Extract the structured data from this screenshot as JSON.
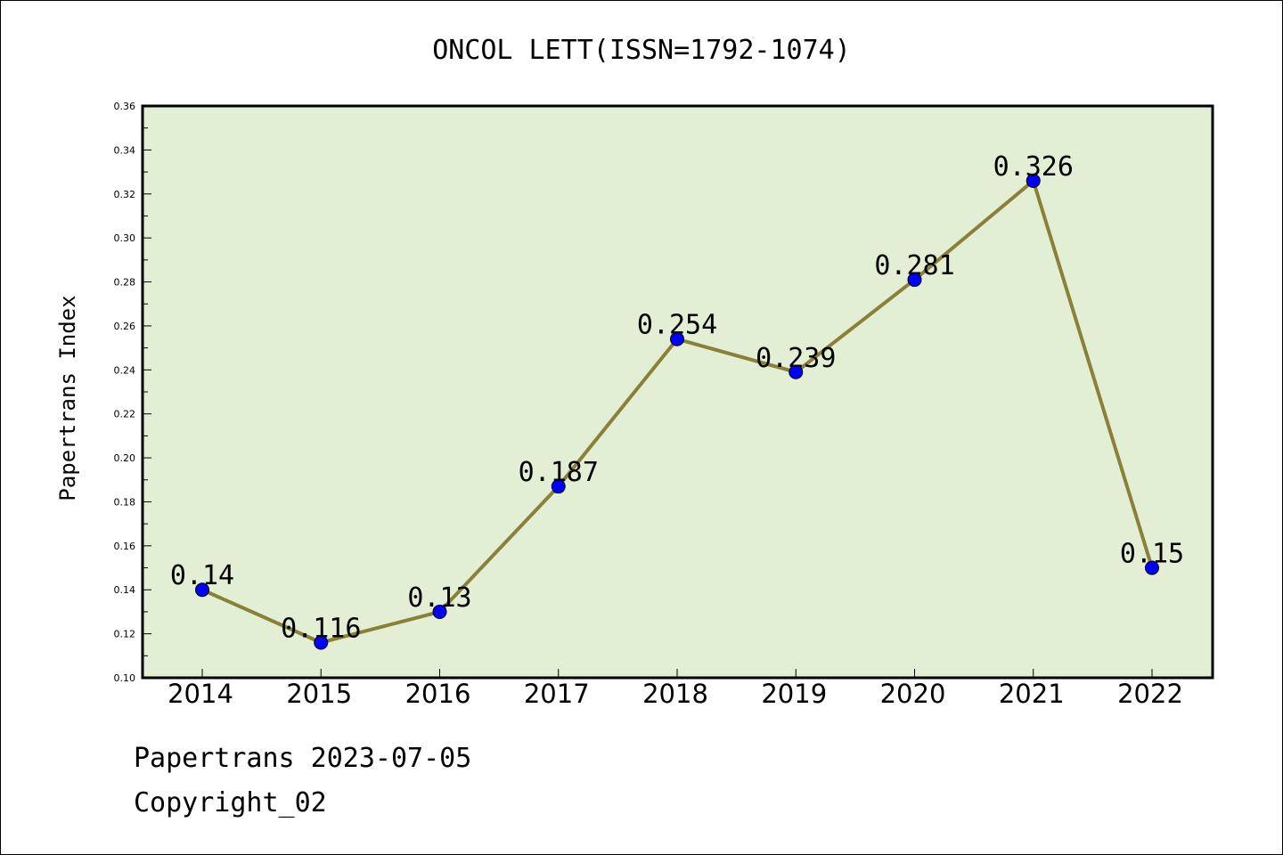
{
  "chart_data": {
    "type": "line",
    "title": "ONCOL LETT(ISSN=1792-1074)",
    "xlabel": "",
    "ylabel": "Papertrans Index",
    "categories": [
      "2014",
      "2015",
      "2016",
      "2017",
      "2018",
      "2019",
      "2020",
      "2021",
      "2022"
    ],
    "values": [
      0.14,
      0.116,
      0.13,
      0.187,
      0.254,
      0.239,
      0.281,
      0.326,
      0.15
    ],
    "data_labels": [
      "0.14",
      "0.116",
      "0.13",
      "0.187",
      "0.254",
      "0.239",
      "0.281",
      "0.326",
      "0.15"
    ],
    "ylim": [
      0.1,
      0.36
    ],
    "yticks": [
      "0.10",
      "0.12",
      "0.14",
      "0.16",
      "0.18",
      "0.20",
      "0.22",
      "0.24",
      "0.26",
      "0.28",
      "0.30",
      "0.32",
      "0.34",
      "0.36"
    ],
    "grid": false,
    "legend": "none",
    "colors": {
      "plot_background": "#e2efd5",
      "line": "#8b8038",
      "marker": "#0000ff"
    }
  },
  "footer": {
    "source": "Papertrans 2023-07-05",
    "copyright": "Copyright_02"
  }
}
